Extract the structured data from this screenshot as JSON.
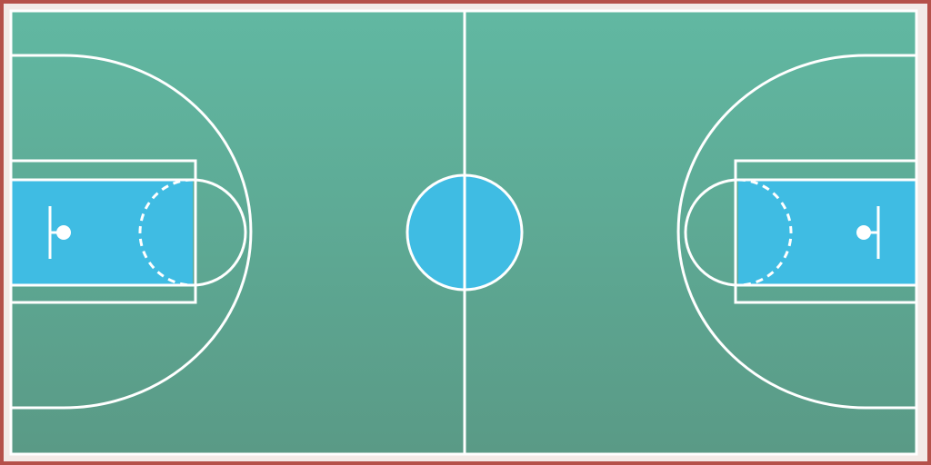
{
  "court": {
    "colors": {
      "border": "#b5514a",
      "outer_frame": "#f3eae7",
      "floor_top": "#61b8a2",
      "floor_bottom": "#5a9a86",
      "paint": "#3fbce3",
      "lines": "#ffffff"
    },
    "layout": "full-court-horizontal",
    "line_style_free_throw_inner": "dashed"
  }
}
